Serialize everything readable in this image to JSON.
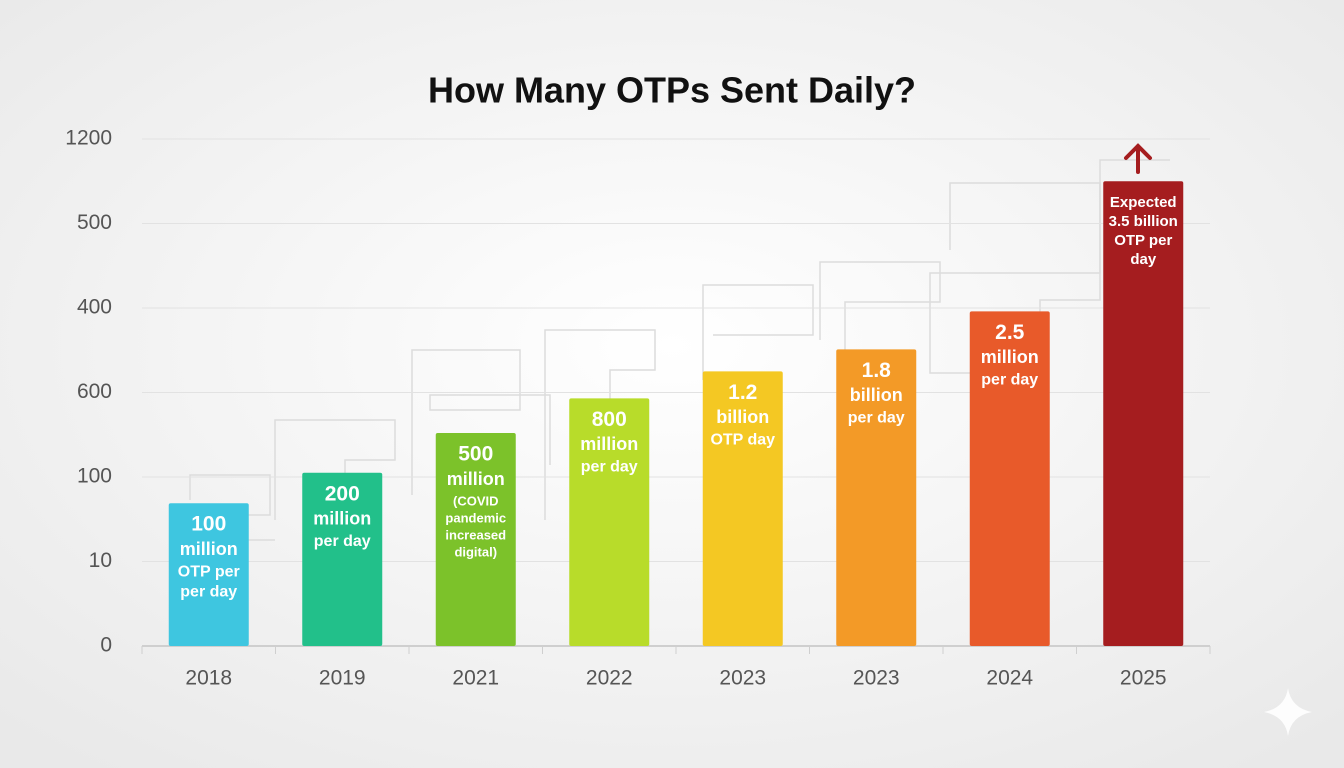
{
  "chart_data": {
    "type": "bar",
    "title": "How Many OTPs Sent Daily?",
    "categories": [
      "2018",
      "2019",
      "2021",
      "2022",
      "2023",
      "2023",
      "2024",
      "2025"
    ],
    "values": [
      1.69,
      2.05,
      2.52,
      2.93,
      3.25,
      3.51,
      3.96,
      5.5
    ],
    "colors": [
      "#3ec6e0",
      "#22c08a",
      "#7cc22a",
      "#b8dc2a",
      "#f4c823",
      "#f39a27",
      "#e85a2a",
      "#a51d1f"
    ],
    "bar_labels": [
      [
        "100",
        "million",
        "OTP per",
        "per day"
      ],
      [
        "200",
        "million",
        "per day"
      ],
      [
        "500",
        "million",
        "(COVID",
        "pandemic",
        "increased",
        "digital)"
      ],
      [
        "800",
        "million",
        "per day"
      ],
      [
        "1.2",
        "billion",
        "OTP day"
      ],
      [
        "1.8",
        "billion",
        "per day"
      ],
      [
        "2.5",
        "million",
        "per day"
      ],
      [
        "Expected",
        "3.5 billion",
        "OTP per",
        "day"
      ]
    ],
    "ylim": [
      0,
      6
    ],
    "yticks": [
      {
        "value": 0,
        "label": "0"
      },
      {
        "value": 1,
        "label": "10"
      },
      {
        "value": 2,
        "label": "100"
      },
      {
        "value": 3,
        "label": "600"
      },
      {
        "value": 4,
        "label": "400"
      },
      {
        "value": 5,
        "label": "500"
      },
      {
        "value": 6,
        "label": "1200"
      }
    ],
    "grid": true
  }
}
